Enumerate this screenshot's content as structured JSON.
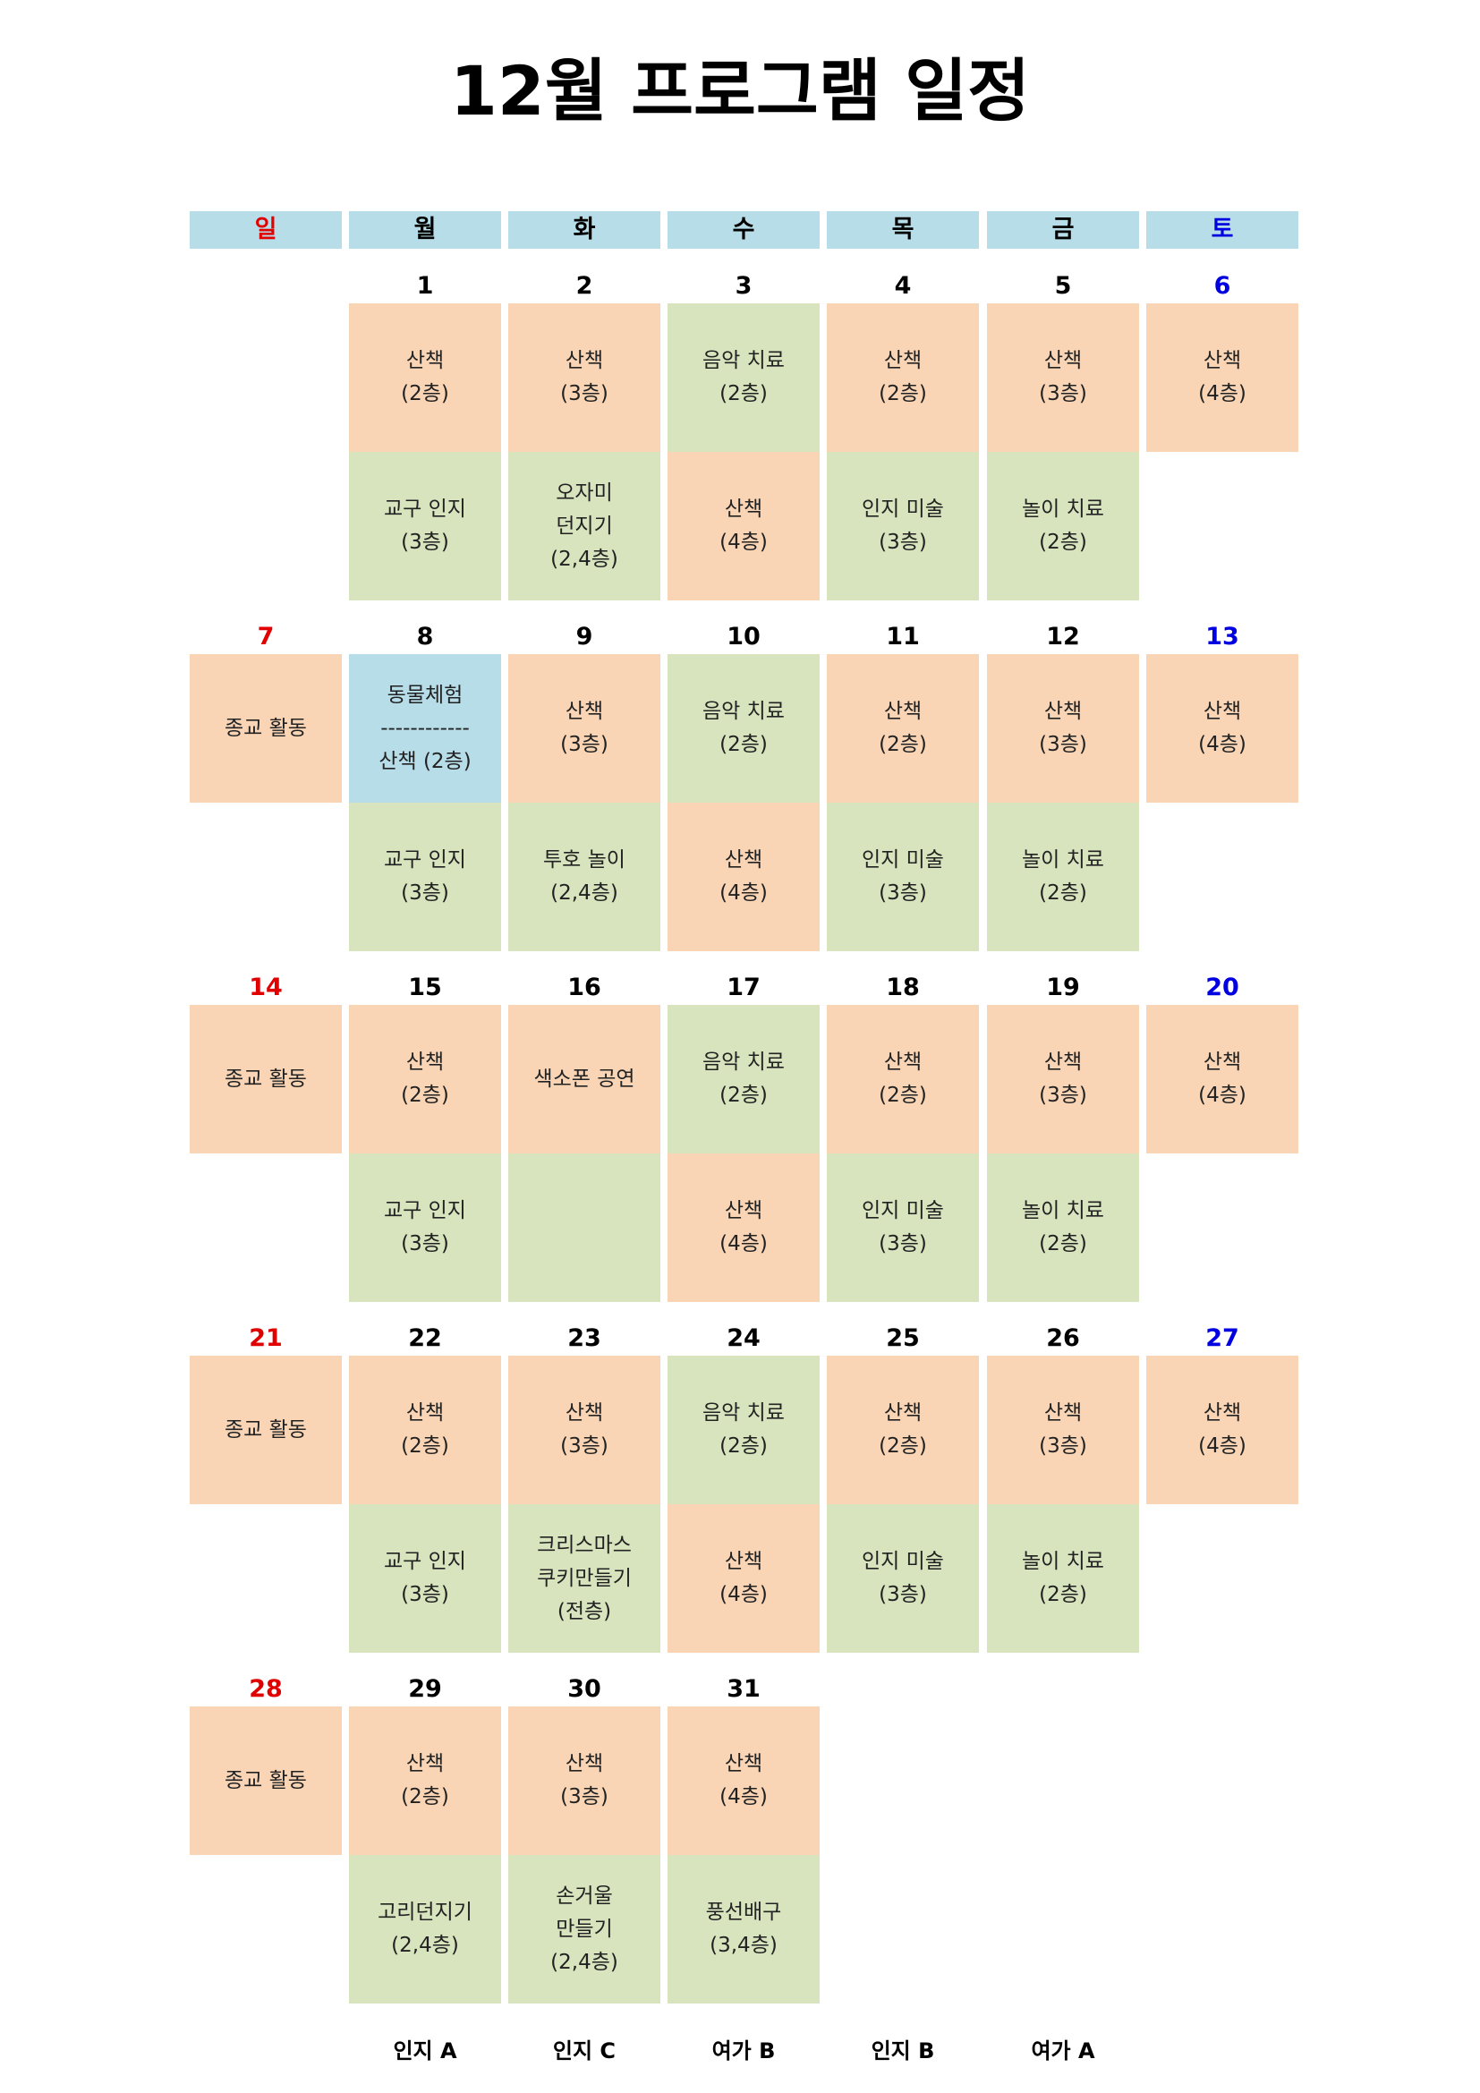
{
  "title": "12월 프로그램 일정",
  "colors": {
    "walk": "#F9D5B6",
    "green": "#D8E4BD",
    "blue": "#B7DDE8",
    "sunday": "#E00000",
    "saturday": "#0000E0",
    "weekday": "#000000"
  },
  "weekdays": [
    "일",
    "월",
    "화",
    "수",
    "목",
    "금",
    "토"
  ],
  "weeks": [
    {
      "days": [
        {
          "date": "",
          "top": null,
          "bottom": null
        },
        {
          "date": "1",
          "top": {
            "text": "산책\n(2층)",
            "color": "walk"
          },
          "bottom": {
            "text": "교구 인지\n(3층)",
            "color": "green"
          }
        },
        {
          "date": "2",
          "top": {
            "text": "산책\n(3층)",
            "color": "walk"
          },
          "bottom": {
            "text": "오자미\n던지기\n(2,4층)",
            "color": "green"
          }
        },
        {
          "date": "3",
          "top": {
            "text": "음악 치료\n(2층)",
            "color": "green"
          },
          "bottom": {
            "text": "산책\n(4층)",
            "color": "walk"
          }
        },
        {
          "date": "4",
          "top": {
            "text": "산책\n(2층)",
            "color": "walk"
          },
          "bottom": {
            "text": "인지 미술\n(3층)",
            "color": "green"
          }
        },
        {
          "date": "5",
          "top": {
            "text": "산책\n(3층)",
            "color": "walk"
          },
          "bottom": {
            "text": "놀이 치료\n(2층)",
            "color": "green"
          }
        },
        {
          "date": "6",
          "top": {
            "text": "산책\n(4층)",
            "color": "walk"
          },
          "bottom": null
        }
      ]
    },
    {
      "days": [
        {
          "date": "7",
          "top": {
            "text": "종교 활동",
            "color": "walk"
          },
          "bottom": null
        },
        {
          "date": "8",
          "top": {
            "text": "동물체험\n------------\n산책 (2층)",
            "color": "blue"
          },
          "bottom": {
            "text": "교구 인지\n(3층)",
            "color": "green"
          }
        },
        {
          "date": "9",
          "top": {
            "text": "산책\n(3층)",
            "color": "walk"
          },
          "bottom": {
            "text": "투호 놀이\n(2,4층)",
            "color": "green"
          }
        },
        {
          "date": "10",
          "top": {
            "text": "음악 치료\n(2층)",
            "color": "green"
          },
          "bottom": {
            "text": "산책\n(4층)",
            "color": "walk"
          }
        },
        {
          "date": "11",
          "top": {
            "text": "산책\n(2층)",
            "color": "walk"
          },
          "bottom": {
            "text": "인지 미술\n(3층)",
            "color": "green"
          }
        },
        {
          "date": "12",
          "top": {
            "text": "산책\n(3층)",
            "color": "walk"
          },
          "bottom": {
            "text": "놀이 치료\n(2층)",
            "color": "green"
          }
        },
        {
          "date": "13",
          "top": {
            "text": "산책\n(4층)",
            "color": "walk"
          },
          "bottom": null
        }
      ]
    },
    {
      "days": [
        {
          "date": "14",
          "top": {
            "text": "종교 활동",
            "color": "walk"
          },
          "bottom": null
        },
        {
          "date": "15",
          "top": {
            "text": "산책\n(2층)",
            "color": "walk"
          },
          "bottom": {
            "text": "교구 인지\n(3층)",
            "color": "green"
          }
        },
        {
          "date": "16",
          "top": {
            "text": "색소폰 공연",
            "color": "walk"
          },
          "bottom": {
            "text": "",
            "color": "green"
          }
        },
        {
          "date": "17",
          "top": {
            "text": "음악 치료\n(2층)",
            "color": "green"
          },
          "bottom": {
            "text": "산책\n(4층)",
            "color": "walk"
          }
        },
        {
          "date": "18",
          "top": {
            "text": "산책\n(2층)",
            "color": "walk"
          },
          "bottom": {
            "text": "인지 미술\n(3층)",
            "color": "green"
          }
        },
        {
          "date": "19",
          "top": {
            "text": "산책\n(3층)",
            "color": "walk"
          },
          "bottom": {
            "text": "놀이 치료\n(2층)",
            "color": "green"
          }
        },
        {
          "date": "20",
          "top": {
            "text": "산책\n(4층)",
            "color": "walk"
          },
          "bottom": null
        }
      ]
    },
    {
      "days": [
        {
          "date": "21",
          "top": {
            "text": "종교 활동",
            "color": "walk"
          },
          "bottom": null
        },
        {
          "date": "22",
          "top": {
            "text": "산책\n(2층)",
            "color": "walk"
          },
          "bottom": {
            "text": "교구 인지\n(3층)",
            "color": "green"
          }
        },
        {
          "date": "23",
          "top": {
            "text": "산책\n(3층)",
            "color": "walk"
          },
          "bottom": {
            "text": "크리스마스\n쿠키만들기\n(전층)",
            "color": "green"
          }
        },
        {
          "date": "24",
          "top": {
            "text": "음악 치료\n(2층)",
            "color": "green"
          },
          "bottom": {
            "text": "산책\n(4층)",
            "color": "walk"
          }
        },
        {
          "date": "25",
          "top": {
            "text": "산책\n(2층)",
            "color": "walk"
          },
          "bottom": {
            "text": "인지 미술\n(3층)",
            "color": "green"
          }
        },
        {
          "date": "26",
          "top": {
            "text": "산책\n(3층)",
            "color": "walk"
          },
          "bottom": {
            "text": "놀이 치료\n(2층)",
            "color": "green"
          }
        },
        {
          "date": "27",
          "top": {
            "text": "산책\n(4층)",
            "color": "walk"
          },
          "bottom": null
        }
      ]
    },
    {
      "days": [
        {
          "date": "28",
          "top": {
            "text": "종교 활동",
            "color": "walk"
          },
          "bottom": null
        },
        {
          "date": "29",
          "top": {
            "text": "산책\n(2층)",
            "color": "walk"
          },
          "bottom": {
            "text": "고리던지기\n(2,4층)",
            "color": "green"
          }
        },
        {
          "date": "30",
          "top": {
            "text": "산책\n(3층)",
            "color": "walk"
          },
          "bottom": {
            "text": "손거울\n만들기\n(2,4층)",
            "color": "green"
          }
        },
        {
          "date": "31",
          "top": {
            "text": "산책\n(4층)",
            "color": "walk"
          },
          "bottom": {
            "text": "풍선배구\n(3,4층)",
            "color": "green"
          }
        },
        {
          "date": "",
          "top": null,
          "bottom": null
        },
        {
          "date": "",
          "top": null,
          "bottom": null
        },
        {
          "date": "",
          "top": null,
          "bottom": null
        }
      ]
    }
  ],
  "footer": [
    "인지 A",
    "인지 C",
    "여가 B",
    "인지 B",
    "여가 A"
  ]
}
